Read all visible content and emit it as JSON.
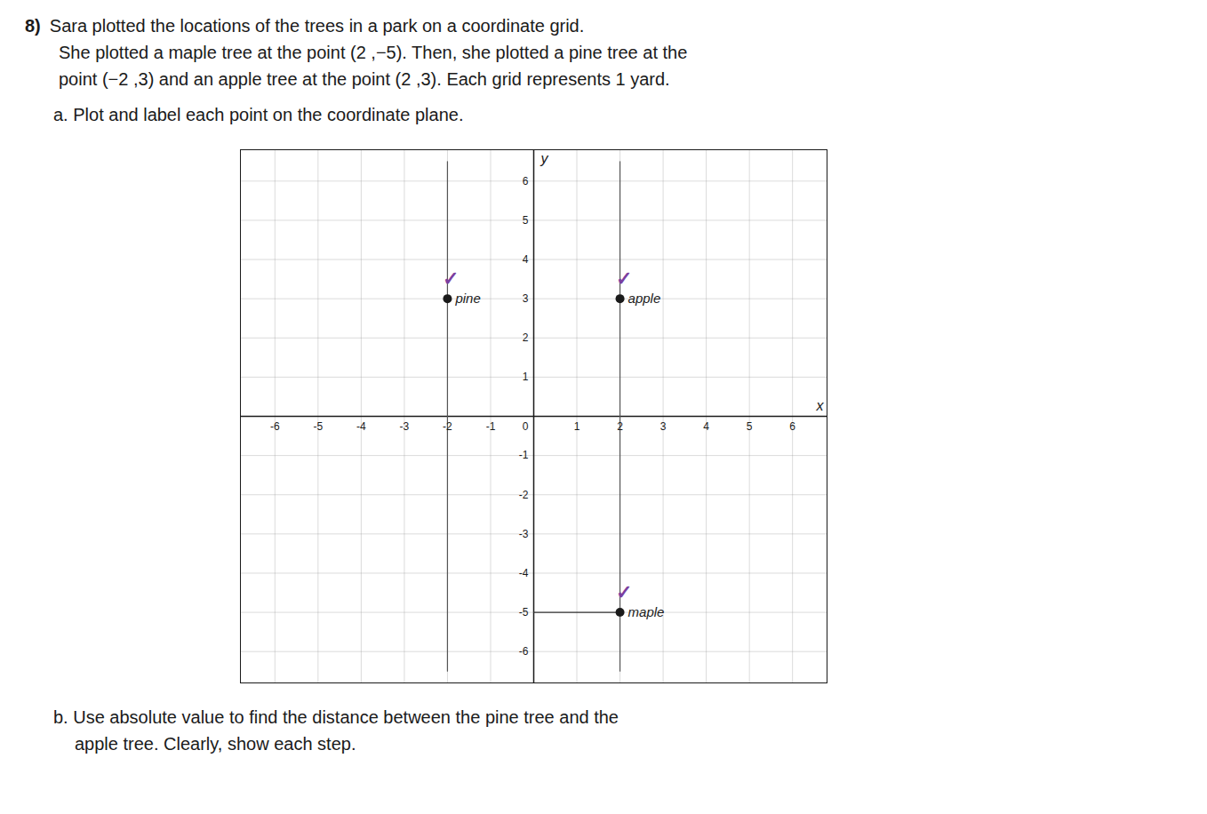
{
  "chart_data": {
    "type": "scatter",
    "title": "8)",
    "text": [
      "Sara plotted the locations of the trees in a park on a coordinate grid.",
      "She plotted a maple tree at the point (2 ,−5). Then, she plotted a pine tree at the",
      "point (−2 ,3) and an apple tree at the point (2 ,3). Each grid represents 1 yard.",
      "a. Plot and label each point on the coordinate plane."
    ],
    "caption": [
      "b. Use absolute value to find the distance between the pine tree and the",
      "apple tree. Clearly, show each step."
    ],
    "x_label": "x",
    "y_label": "y",
    "x": [
      2,
      -2,
      2
    ],
    "values": [
      -5,
      3,
      3
    ],
    "labels": [
      "maple",
      "pine",
      "apple"
    ],
    "color": "#1a1a1a",
    "xlim": [
      -6.8,
      6.8
    ],
    "ylim": [
      -6.8,
      6.8
    ],
    "xticks": [
      -6,
      -5,
      -4,
      -3,
      -2,
      -1,
      0,
      1,
      2,
      3,
      4,
      5,
      6
    ],
    "yticks": [
      -6,
      -5,
      -4,
      -3,
      -2,
      -1,
      1,
      2,
      3,
      4,
      5,
      6
    ],
    "grid": true,
    "lines": [
      {
        "x": [
          -2,
          -2
        ],
        "y": [
          -6.5,
          6.5
        ],
        "color": "#555555"
      },
      {
        "x": [
          2,
          2
        ],
        "y": [
          -6.5,
          6.5
        ],
        "color": "#555555"
      },
      {
        "x": [
          0,
          2
        ],
        "y": [
          -5,
          -5
        ],
        "color": "#333333"
      }
    ],
    "annotations": [
      {
        "text": "✓",
        "x": -2,
        "y": 3,
        "color": "#7b3fa0"
      },
      {
        "text": "✓",
        "x": 2,
        "y": 3,
        "color": "#7b3fa0"
      },
      {
        "text": "✓",
        "x": 2,
        "y": -5,
        "color": "#7b3fa0"
      }
    ]
  }
}
